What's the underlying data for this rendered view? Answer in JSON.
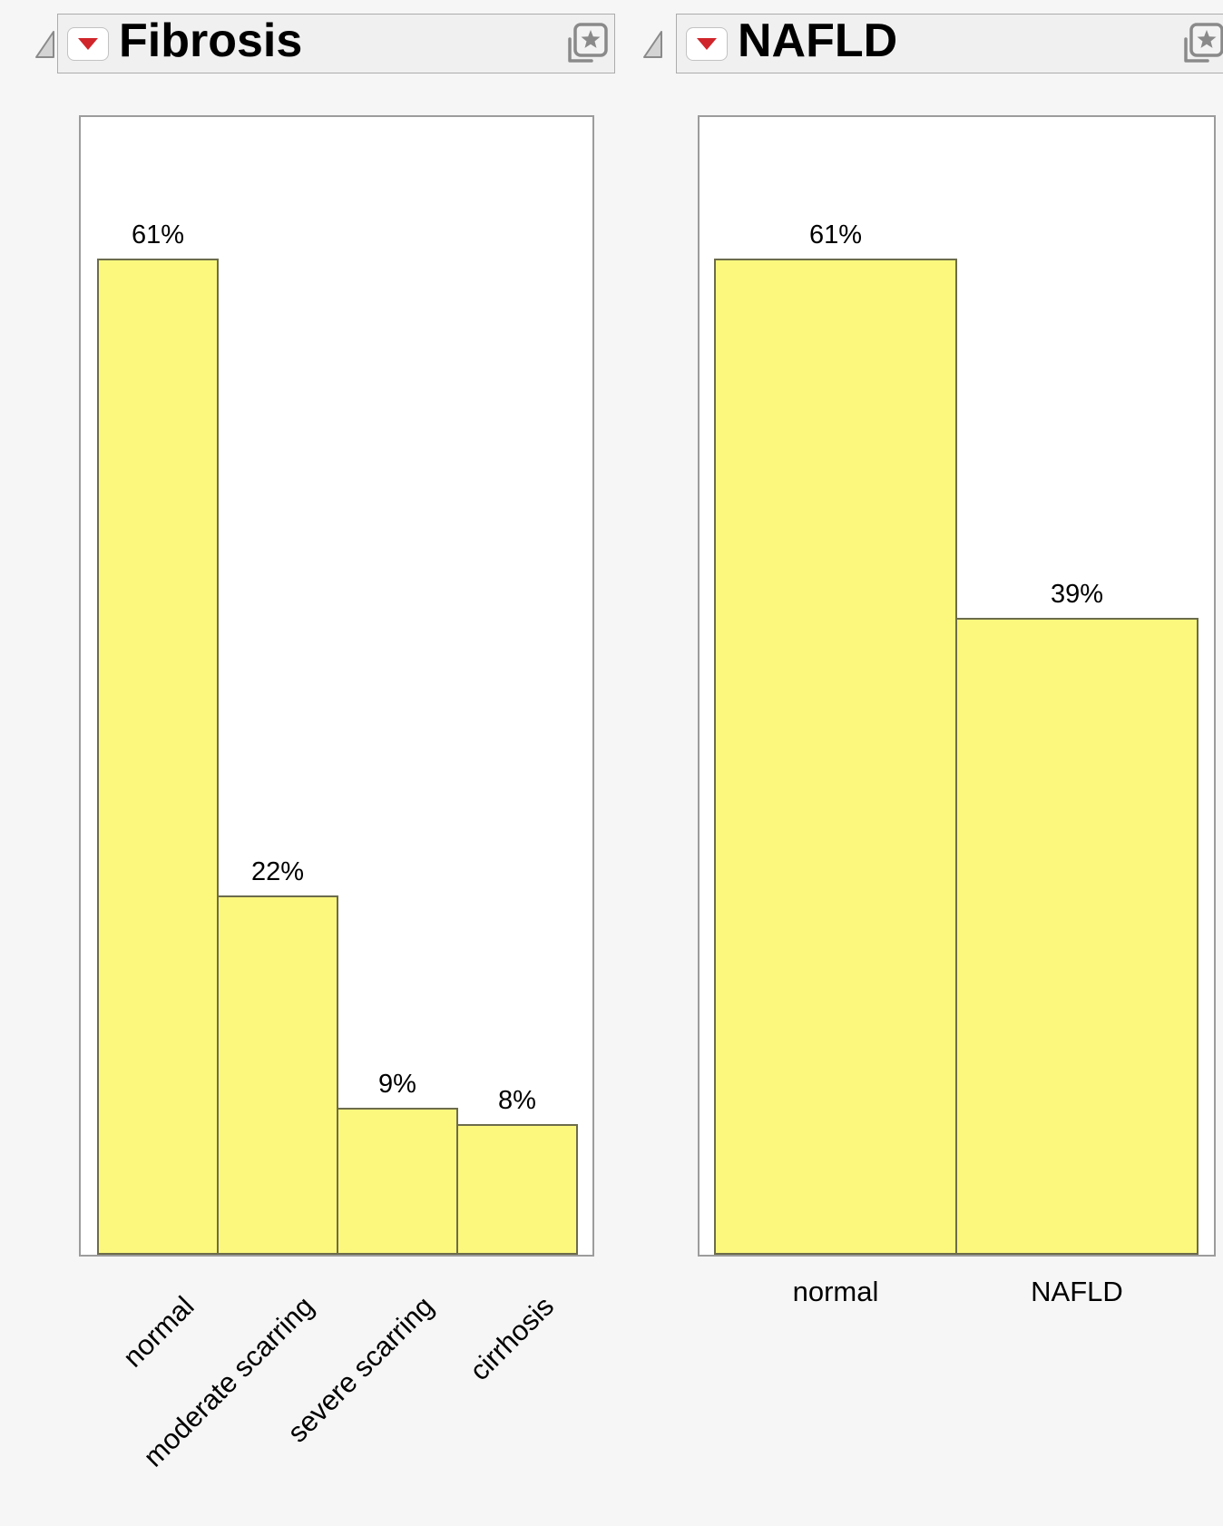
{
  "app_colors": {
    "page_background": "#F6F6F6",
    "header_background": "#F0F0F0",
    "plot_background": "#FFFFFF",
    "plot_border": "#9C9C9C",
    "red_triangle": "#D0252B",
    "icon_gray": "#8A8A8A"
  },
  "panels": [
    {
      "title": "Fibrosis",
      "icons": [
        "disclosure-triangle-icon",
        "red-triangle-menu-icon",
        "bookmark-star-icon"
      ],
      "chart_data": {
        "type": "bar",
        "categories": [
          "normal",
          "moderate scarring",
          "severe scarring",
          "cirrhosis"
        ],
        "values": [
          61,
          22,
          9,
          8
        ],
        "value_labels": [
          "61%",
          "22%",
          "9%",
          "8%"
        ],
        "title": "Fibrosis",
        "xlabel": "",
        "ylabel": "",
        "ylim": [
          0,
          70
        ],
        "y_unit": "percent",
        "grid": false,
        "legend": "none",
        "bar_color": "#FCF87D",
        "bar_border": "#6C6C4C",
        "category_label_rotation_deg": 45
      }
    },
    {
      "title": "NAFLD",
      "icons": [
        "disclosure-triangle-icon",
        "red-triangle-menu-icon",
        "bookmark-star-icon"
      ],
      "chart_data": {
        "type": "bar",
        "categories": [
          "normal",
          "NAFLD"
        ],
        "values": [
          61,
          39
        ],
        "value_labels": [
          "61%",
          "39%"
        ],
        "title": "NAFLD",
        "xlabel": "",
        "ylabel": "",
        "ylim": [
          0,
          70
        ],
        "y_unit": "percent",
        "grid": false,
        "legend": "none",
        "bar_color": "#FCF87D",
        "bar_border": "#6C6C4C",
        "category_label_rotation_deg": 0
      }
    }
  ]
}
